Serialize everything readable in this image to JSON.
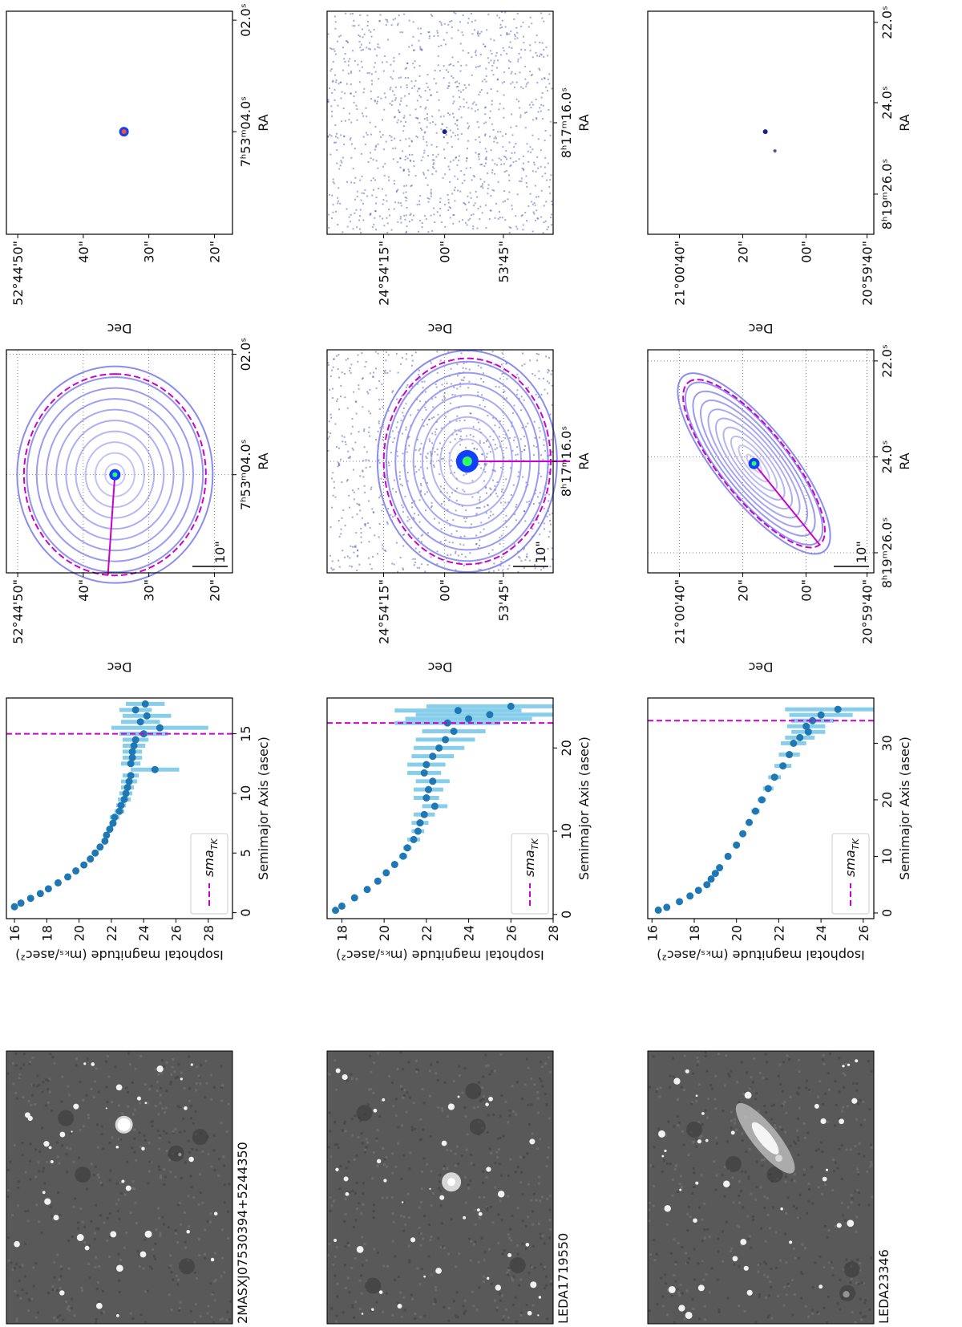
{
  "chart_data": [
    {
      "type": "scatter",
      "xlabel": "Semimajor Axis (asec)",
      "ylabel": "Isophotal magnitude (mₖₛ/asec²)",
      "x": [
        0.5,
        0.8,
        1.2,
        1.6,
        2.0,
        2.5,
        3.0,
        3.5,
        4.0,
        4.5,
        5.0,
        5.5,
        6.0,
        6.5,
        7.0,
        7.5,
        8.0,
        8.5,
        9.0,
        9.5,
        10.0,
        10.5,
        11.0,
        11.5,
        12.0,
        12.5,
        13.0,
        13.5,
        14.0,
        14.5,
        15.0,
        15.5,
        16.0,
        16.5,
        17.0,
        17.5
      ],
      "values": [
        16.0,
        16.4,
        17.0,
        17.6,
        18.1,
        18.7,
        19.3,
        19.8,
        20.3,
        20.7,
        21.0,
        21.3,
        21.6,
        21.7,
        21.9,
        22.1,
        22.2,
        22.5,
        22.6,
        22.8,
        22.9,
        23.0,
        23.1,
        23.2,
        24.7,
        23.2,
        23.3,
        23.3,
        23.4,
        23.5,
        24.0,
        25.0,
        23.8,
        24.2,
        23.5,
        24.1
      ],
      "errors": [
        0.05,
        0.05,
        0.05,
        0.05,
        0.05,
        0.05,
        0.05,
        0.05,
        0.1,
        0.1,
        0.1,
        0.1,
        0.15,
        0.15,
        0.2,
        0.2,
        0.3,
        0.3,
        0.3,
        0.4,
        0.4,
        0.4,
        0.5,
        0.5,
        1.5,
        0.6,
        0.6,
        0.6,
        0.7,
        0.8,
        1.5,
        3.0,
        1.2,
        1.5,
        1.0,
        1.2
      ],
      "color": "#1f77b4",
      "error_color": "#87ceeb",
      "sma_tk": 15,
      "sma_color": "#cc00cc",
      "legend": {
        "text": "sma",
        "sub": "TK"
      },
      "legend_loc": "lower left",
      "xlim": [
        -0.5,
        18
      ],
      "ylim": [
        15.5,
        29.5
      ],
      "xticks": [
        0,
        5,
        10,
        15
      ],
      "yticks": [
        16,
        18,
        20,
        22,
        24,
        26,
        28
      ]
    },
    {
      "type": "scatter",
      "xlabel": "Semimajor Axis (asec)",
      "ylabel": "Isophotal magnitude (mₖₛ/asec²)",
      "x": [
        0.5,
        1,
        2,
        3,
        4,
        5,
        6,
        7,
        8,
        9,
        10,
        11,
        12,
        13,
        14,
        15,
        16,
        17,
        18,
        19,
        20,
        21,
        22,
        23,
        23.5,
        24,
        24.5,
        25
      ],
      "values": [
        17.7,
        18.0,
        18.6,
        19.2,
        19.7,
        20.1,
        20.5,
        20.9,
        21.1,
        21.4,
        21.6,
        21.7,
        21.9,
        22.4,
        22.0,
        22.1,
        22.3,
        21.9,
        22.0,
        22.3,
        22.6,
        22.9,
        23.3,
        23.0,
        24.0,
        25.0,
        23.5,
        26.0
      ],
      "errors": [
        0.05,
        0.05,
        0.05,
        0.1,
        0.1,
        0.1,
        0.15,
        0.2,
        0.2,
        0.3,
        0.3,
        0.4,
        0.5,
        0.6,
        0.6,
        0.7,
        0.8,
        0.8,
        0.9,
        1.0,
        1.2,
        1.4,
        1.5,
        2.5,
        3.0,
        3.5,
        3.0,
        4.0
      ],
      "color": "#1f77b4",
      "error_color": "#87ceeb",
      "sma_tk": 23,
      "sma_color": "#cc00cc",
      "legend": {
        "text": "sma",
        "sub": "TK"
      },
      "legend_loc": "lower left",
      "xlim": [
        -0.5,
        26
      ],
      "ylim": [
        17.3,
        28
      ],
      "xticks": [
        0,
        10,
        20
      ],
      "yticks": [
        18,
        20,
        22,
        24,
        26,
        28
      ]
    },
    {
      "type": "scatter",
      "xlabel": "Semimajor Axis (asec)",
      "ylabel": "Isophotal magnitude (mₖₛ/asec²)",
      "x": [
        0.5,
        1,
        2,
        3,
        4,
        5,
        6,
        7,
        8,
        10,
        12,
        14,
        16,
        18,
        20,
        22,
        24,
        26,
        28,
        30,
        31,
        32,
        33,
        34,
        35,
        36
      ],
      "values": [
        16.3,
        16.7,
        17.3,
        17.8,
        18.2,
        18.6,
        18.8,
        19.0,
        19.2,
        19.6,
        20.0,
        20.3,
        20.6,
        20.9,
        21.2,
        21.5,
        21.8,
        22.2,
        22.5,
        22.7,
        23.0,
        23.4,
        23.3,
        23.6,
        24.0,
        24.8
      ],
      "errors": [
        0.05,
        0.05,
        0.05,
        0.05,
        0.05,
        0.05,
        0.05,
        0.05,
        0.1,
        0.1,
        0.1,
        0.1,
        0.15,
        0.2,
        0.2,
        0.25,
        0.3,
        0.4,
        0.5,
        0.6,
        0.7,
        0.8,
        0.9,
        1.0,
        1.5,
        2.5
      ],
      "color": "#1f77b4",
      "error_color": "#87ceeb",
      "sma_tk": 34,
      "sma_color": "#cc00cc",
      "legend": {
        "text": "sma",
        "sub": "TK"
      },
      "legend_loc": "lower left",
      "xlim": [
        -1,
        38
      ],
      "ylim": [
        15.8,
        26.5
      ],
      "xticks": [
        0,
        10,
        20,
        30
      ],
      "yticks": [
        16,
        18,
        20,
        22,
        24,
        26
      ]
    }
  ],
  "galaxies": [
    {
      "name": "2MASXJ07530394+5244350",
      "contour": {
        "xlabel": "RA",
        "ylabel": "Dec",
        "scale": "10\"",
        "ra_ticks": [
          "7ʰ53ᵐ04.0ˢ",
          "02.0ˢ"
        ],
        "dec_ticks": [
          "52°44'50\"",
          "40\"",
          "30\"",
          "20\""
        ]
      },
      "model": {
        "xlabel": "RA",
        "ylabel": "Dec",
        "ra_ticks": [
          "7ʰ53ᵐ04.0ˢ",
          "02.0ˢ"
        ],
        "dec_ticks": [
          "52°44'50\"",
          "40\"",
          "30\"",
          "20\""
        ]
      }
    },
    {
      "name": "LEDA1719550",
      "contour": {
        "xlabel": "RA",
        "ylabel": "Dec",
        "scale": "10\"",
        "ra_ticks": [
          "8ʰ17ᵐ16.0ˢ"
        ],
        "dec_ticks": [
          "24°54'15\"",
          "00\"",
          "53'45\""
        ]
      },
      "model": {
        "xlabel": "RA",
        "ylabel": "Dec",
        "ra_ticks": [
          "8ʰ17ᵐ16.0ˢ"
        ],
        "dec_ticks": [
          "24°54'15\"",
          "00\"",
          "53'45\""
        ]
      }
    },
    {
      "name": "LEDA23346",
      "contour": {
        "xlabel": "RA",
        "ylabel": "Dec",
        "scale": "10\"",
        "ra_ticks": [
          "8ʰ19ᵐ26.0ˢ",
          "24.0ˢ",
          "22.0ˢ"
        ],
        "dec_ticks": [
          "21°00'40\"",
          "20\"",
          "00\"",
          "20°59'40\""
        ]
      },
      "model": {
        "xlabel": "RA",
        "ylabel": "Dec",
        "ra_ticks": [
          "8ʰ19ᵐ26.0ˢ",
          "24.0ˢ",
          "22.0ˢ"
        ],
        "dec_ticks": [
          "21°00'40\"",
          "20\"",
          "00\"",
          "20°59'40\""
        ]
      }
    }
  ]
}
